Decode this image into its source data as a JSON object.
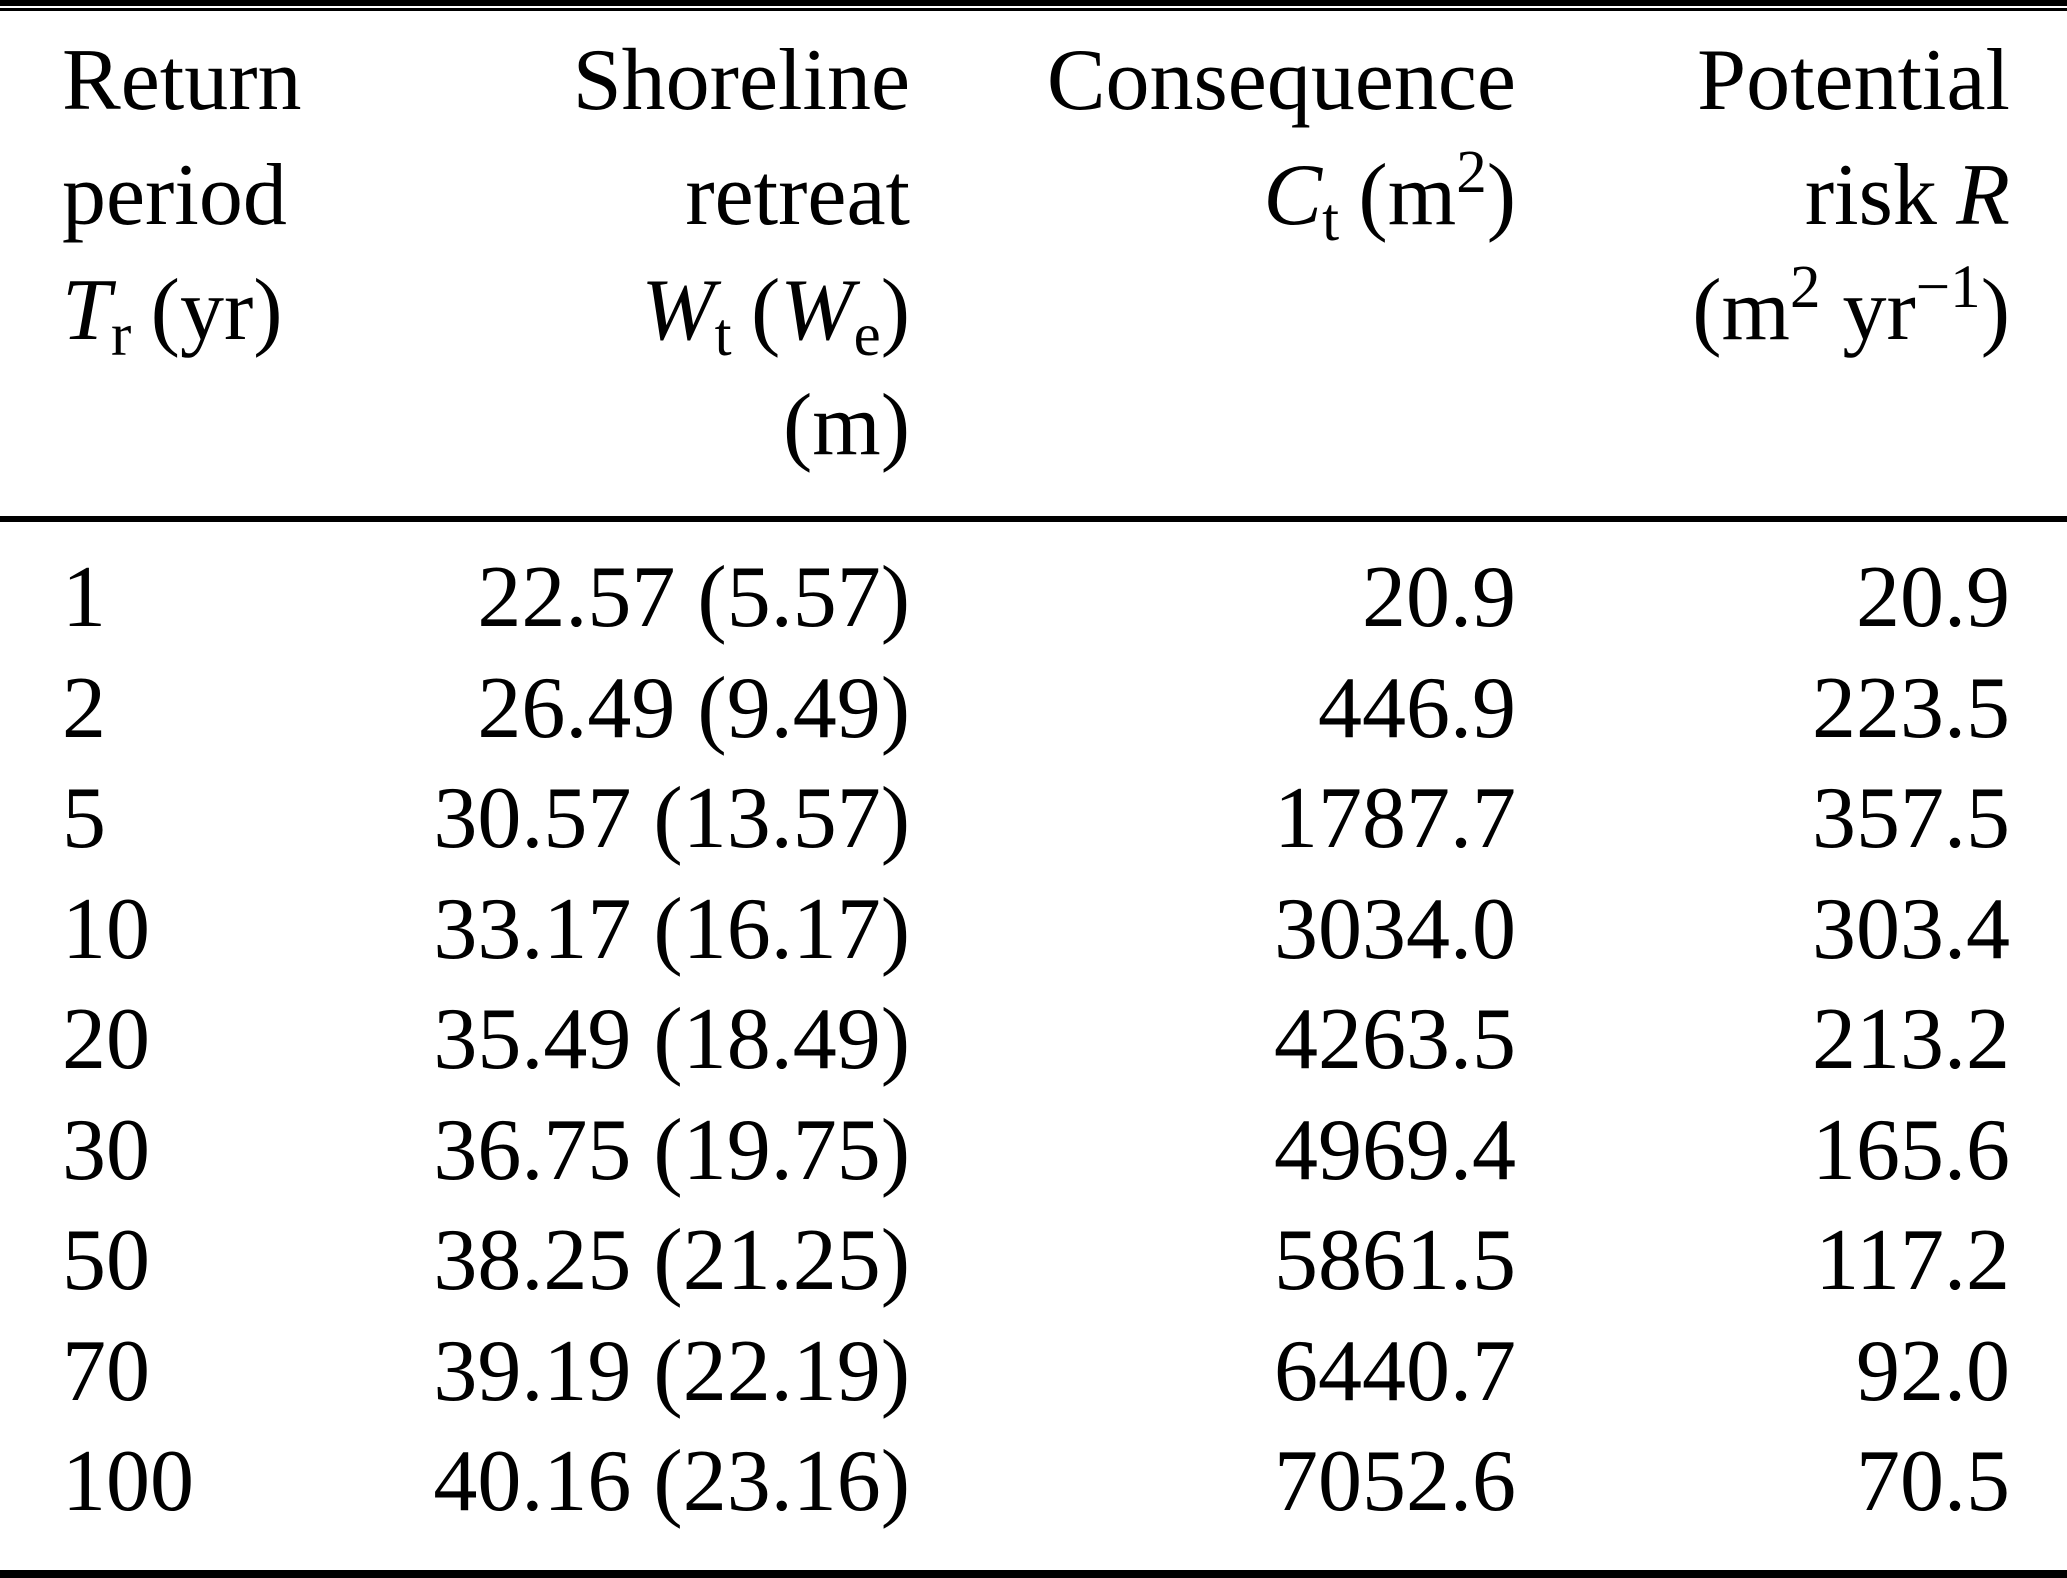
{
  "colors": {
    "text": "#000000",
    "background": "#ffffff",
    "rule": "#000000"
  },
  "table": {
    "header": {
      "col1": {
        "line1": "Return",
        "line2": "period",
        "symbol": "T",
        "symbol_sub": "r",
        "unit": "(yr)"
      },
      "col2": {
        "line1": "Shoreline",
        "line2": "retreat",
        "symbol": "W",
        "symbol_sub": "t",
        "paren_open": "(",
        "symbol2": "W",
        "symbol2_sub": "e",
        "paren_close": ")",
        "unit": "(m)"
      },
      "col3": {
        "line1": "Consequence",
        "symbol": "C",
        "symbol_sub": "t",
        "unit_open": "(m",
        "unit_sup": "2",
        "unit_close": ")"
      },
      "col4": {
        "line1": "Potential",
        "line2_word": "risk",
        "symbol": "R",
        "unit_open": "(m",
        "unit_sup1": "2",
        "unit_mid": " yr",
        "unit_sup2": "−1",
        "unit_close": ")"
      }
    },
    "rows": [
      {
        "tr": "1",
        "wt": "22.57 (5.57)",
        "ct": "20.9",
        "r": "20.9"
      },
      {
        "tr": "2",
        "wt": "26.49 (9.49)",
        "ct": "446.9",
        "r": "223.5"
      },
      {
        "tr": "5",
        "wt": "30.57 (13.57)",
        "ct": "1787.7",
        "r": "357.5"
      },
      {
        "tr": "10",
        "wt": "33.17 (16.17)",
        "ct": "3034.0",
        "r": "303.4"
      },
      {
        "tr": "20",
        "wt": "35.49 (18.49)",
        "ct": "4263.5",
        "r": "213.2"
      },
      {
        "tr": "30",
        "wt": "36.75 (19.75)",
        "ct": "4969.4",
        "r": "165.6"
      },
      {
        "tr": "50",
        "wt": "38.25 (21.25)",
        "ct": "5861.5",
        "r": "117.2"
      },
      {
        "tr": "70",
        "wt": "39.19 (22.19)",
        "ct": "6440.7",
        "r": "92.0"
      },
      {
        "tr": "100",
        "wt": "40.16 (23.16)",
        "ct": "7052.6",
        "r": "70.5"
      }
    ]
  },
  "chart_data": {
    "type": "table",
    "columns": [
      "Return period Tr (yr)",
      "Shoreline retreat Wt (We) (m)",
      "Consequence Ct (m2)",
      "Potential risk R (m2 yr-1)"
    ],
    "rows": [
      [
        1,
        "22.57 (5.57)",
        20.9,
        20.9
      ],
      [
        2,
        "26.49 (9.49)",
        446.9,
        223.5
      ],
      [
        5,
        "30.57 (13.57)",
        1787.7,
        357.5
      ],
      [
        10,
        "33.17 (16.17)",
        3034.0,
        303.4
      ],
      [
        20,
        "35.49 (18.49)",
        4263.5,
        213.2
      ],
      [
        30,
        "36.75 (19.75)",
        4969.4,
        165.6
      ],
      [
        50,
        "38.25 (21.25)",
        5861.5,
        117.2
      ],
      [
        70,
        "39.19 (22.19)",
        6440.7,
        92.0
      ],
      [
        100,
        "40.16 (23.16)",
        7052.6,
        70.5
      ]
    ],
    "wt_we_values": [
      [
        22.57,
        5.57
      ],
      [
        26.49,
        9.49
      ],
      [
        30.57,
        13.57
      ],
      [
        33.17,
        16.17
      ],
      [
        35.49,
        18.49
      ],
      [
        36.75,
        19.75
      ],
      [
        38.25,
        21.25
      ],
      [
        39.19,
        22.19
      ],
      [
        40.16,
        23.16
      ]
    ]
  }
}
